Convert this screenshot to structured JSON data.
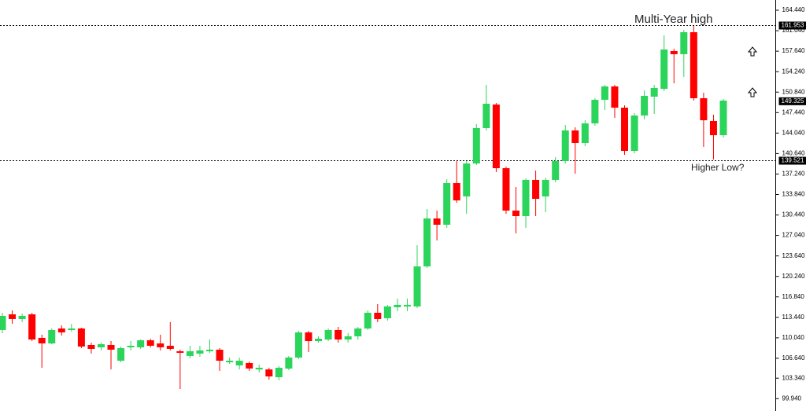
{
  "chart_data": {
    "type": "candlestick",
    "up_color": "#2bd45a",
    "down_color": "#ff0000",
    "ylim": [
      98.67,
      166.14
    ],
    "yticks": [
      {
        "value": 164.44,
        "label": "164.440"
      },
      {
        "value": 161.04,
        "label": "161.040"
      },
      {
        "value": 157.64,
        "label": "157.640"
      },
      {
        "value": 154.24,
        "label": "154.240"
      },
      {
        "value": 150.84,
        "label": "150.840"
      },
      {
        "value": 147.44,
        "label": "147.440"
      },
      {
        "value": 144.04,
        "label": "144.040"
      },
      {
        "value": 140.64,
        "label": "140.640"
      },
      {
        "value": 137.24,
        "label": "137.240"
      },
      {
        "value": 133.84,
        "label": "133.840"
      },
      {
        "value": 130.44,
        "label": "130.440"
      },
      {
        "value": 127.04,
        "label": "127.040"
      },
      {
        "value": 123.64,
        "label": "123.640"
      },
      {
        "value": 120.24,
        "label": "120.240"
      },
      {
        "value": 116.84,
        "label": "116.840"
      },
      {
        "value": 113.44,
        "label": "113.440"
      },
      {
        "value": 110.04,
        "label": "110.040"
      },
      {
        "value": 106.64,
        "label": "106.640"
      },
      {
        "value": 103.34,
        "label": "103.340"
      },
      {
        "value": 99.94,
        "label": "99.940"
      }
    ],
    "levels": [
      161.953,
      139.521
    ],
    "current_price": 149.325,
    "annotations": [
      "Multi-Year high",
      "Higher Low?"
    ],
    "open": [
      111.33,
      113.94,
      113.16,
      113.94,
      110.03,
      109.11,
      111.59,
      111.33,
      111.59,
      108.85,
      108.46,
      108.85,
      106.24,
      108.46,
      108.46,
      109.63,
      109.11,
      108.72,
      107.81,
      107.03,
      107.42,
      107.81,
      108.07,
      105.98,
      105.46,
      105.85,
      104.79,
      104.79,
      103.5,
      104.93,
      106.76,
      110.94,
      109.5,
      109.76,
      111.33,
      109.76,
      110.29,
      111.59,
      114.2,
      113.29,
      115.12,
      115.25,
      115.25,
      121.9,
      129.86,
      128.82,
      135.73,
      133.52,
      138.99,
      144.87,
      148.78,
      138.21,
      131.17,
      130.25,
      136.26,
      133.52,
      136.26,
      139.39,
      144.48,
      142.39,
      145.65,
      149.57,
      151.79,
      148.26,
      141.08,
      146.96,
      150.09,
      151.39,
      157.66,
      157.14,
      160.79,
      149.83,
      146.04,
      143.69
    ],
    "high": [
      114.2,
      114.59,
      114.07,
      114.2,
      110.55,
      111.59,
      112.11,
      112.37,
      111.72,
      109.24,
      109.24,
      109.5,
      108.59,
      109.5,
      109.76,
      109.89,
      110.55,
      112.64,
      108.07,
      108.72,
      108.72,
      109.76,
      108.33,
      106.76,
      106.76,
      106.11,
      105.59,
      105.07,
      105.33,
      107.03,
      111.2,
      111.2,
      110.29,
      111.59,
      111.85,
      110.81,
      111.85,
      114.59,
      115.64,
      115.51,
      116.55,
      116.55,
      125.42,
      131.43,
      131.17,
      136.38,
      139.39,
      139.39,
      145.52,
      152.05,
      149.04,
      138.47,
      135.08,
      136.52,
      137.82,
      136.65,
      140.04,
      145.39,
      145.0,
      146.17,
      149.83,
      152.05,
      152.05,
      148.65,
      147.35,
      151.13,
      152.05,
      160.27,
      158.05,
      161.18,
      161.83,
      150.74,
      147.09,
      149.7
    ],
    "low": [
      110.81,
      112.37,
      112.64,
      109.5,
      105.07,
      108.98,
      110.42,
      111.07,
      108.33,
      107.42,
      107.94,
      104.79,
      105.98,
      107.94,
      108.2,
      108.46,
      107.94,
      107.94,
      101.54,
      106.63,
      106.89,
      107.55,
      104.54,
      105.72,
      104.79,
      104.54,
      104.28,
      103.11,
      102.98,
      104.67,
      106.5,
      107.68,
      109.24,
      109.5,
      109.24,
      109.24,
      109.76,
      111.33,
      112.64,
      112.9,
      114.46,
      114.46,
      114.98,
      121.64,
      126.21,
      128.3,
      132.47,
      130.64,
      138.73,
      144.48,
      137.56,
      130.64,
      127.38,
      128.3,
      130.25,
      130.9,
      135.86,
      138.99,
      137.3,
      141.87,
      145.26,
      147.87,
      146.57,
      140.43,
      140.69,
      146.3,
      147.22,
      151.0,
      152.31,
      153.35,
      149.44,
      141.74,
      139.65,
      143.3
    ],
    "close": [
      113.68,
      113.16,
      113.68,
      109.76,
      109.11,
      111.33,
      110.94,
      111.59,
      108.59,
      108.2,
      108.98,
      108.07,
      108.33,
      108.72,
      109.63,
      108.72,
      108.46,
      108.2,
      107.55,
      107.81,
      107.94,
      108.07,
      106.24,
      106.24,
      106.24,
      104.94,
      105.07,
      103.63,
      105.07,
      106.76,
      110.94,
      109.5,
      109.89,
      111.33,
      109.76,
      110.29,
      111.59,
      114.2,
      113.16,
      115.25,
      115.51,
      115.51,
      121.9,
      129.86,
      128.82,
      135.73,
      132.86,
      138.99,
      144.87,
      148.91,
      138.21,
      131.17,
      130.25,
      136.26,
      133.12,
      136.26,
      139.39,
      144.48,
      142.39,
      145.65,
      149.57,
      151.79,
      148.26,
      141.08,
      146.96,
      150.22,
      151.52,
      157.92,
      157.14,
      160.79,
      149.83,
      146.17,
      143.69,
      149.44
    ]
  }
}
